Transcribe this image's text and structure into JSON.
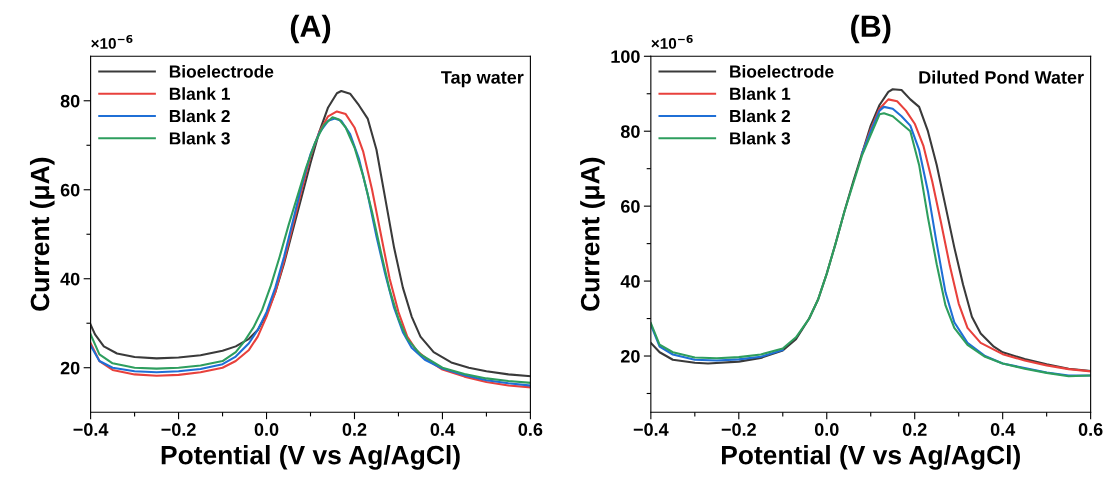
{
  "chart_data": [
    {
      "type": "line",
      "title": "(A)",
      "xlabel": "Potential (V vs Ag/AgCl)",
      "ylabel": "Current (μA)",
      "annotations": [
        "×10$^{−6}$",
        "Tap water"
      ],
      "xlim": [
        -0.4,
        0.6
      ],
      "ylim": [
        10,
        90
      ],
      "xticks": [
        {
          "value": -0.4,
          "label": "−0.4"
        },
        {
          "value": -0.3,
          "label": null
        },
        {
          "value": -0.2,
          "label": "−0.2"
        },
        {
          "value": -0.1,
          "label": null
        },
        {
          "value": 0,
          "label": "0.0"
        },
        {
          "value": 0.1,
          "label": null
        },
        0.2,
        {
          "value": 0.3,
          "label": null
        },
        0.4,
        {
          "value": 0.5,
          "label": null
        },
        0.6
      ],
      "yticks": [
        20,
        {
          "value": 30,
          "label": null
        },
        40,
        {
          "value": 50,
          "label": null
        },
        60,
        {
          "value": 70,
          "label": null
        },
        80
      ],
      "grid": false,
      "legend": "top left",
      "line_style": "solid",
      "marker": "none",
      "series": [
        {
          "name": "Bioelectrode",
          "color": "#3a3a3a",
          "x": [
            -0.4,
            -0.39,
            -0.37,
            -0.34,
            -0.3,
            -0.25,
            -0.2,
            -0.15,
            -0.1,
            -0.07,
            -0.04,
            -0.02,
            0.0,
            0.02,
            0.04,
            0.06,
            0.08,
            0.1,
            0.12,
            0.14,
            0.16,
            0.17,
            0.19,
            0.21,
            0.23,
            0.25,
            0.27,
            0.29,
            0.31,
            0.33,
            0.35,
            0.38,
            0.42,
            0.46,
            0.5,
            0.55,
            0.6
          ],
          "values": [
            29.7,
            27.5,
            24.8,
            23.2,
            22.4,
            22.1,
            22.3,
            22.8,
            23.8,
            24.8,
            26.5,
            28.5,
            32,
            37,
            43.5,
            51,
            58.5,
            66,
            73,
            78.5,
            81.7,
            82.2,
            81.6,
            79,
            76,
            69,
            58,
            47,
            38,
            31.5,
            27,
            23.5,
            21.2,
            20,
            19.2,
            18.5,
            18.1
          ]
        },
        {
          "name": "Blank 1",
          "color": "#e8413c",
          "x": [
            -0.4,
            -0.38,
            -0.35,
            -0.3,
            -0.25,
            -0.2,
            -0.15,
            -0.1,
            -0.07,
            -0.04,
            -0.02,
            0.0,
            0.02,
            0.04,
            0.06,
            0.08,
            0.1,
            0.12,
            0.14,
            0.16,
            0.18,
            0.2,
            0.22,
            0.24,
            0.26,
            0.28,
            0.3,
            0.32,
            0.34,
            0.37,
            0.4,
            0.45,
            0.5,
            0.55,
            0.6
          ],
          "values": [
            25.5,
            21.5,
            19.5,
            18.5,
            18.2,
            18.4,
            19,
            20,
            21.5,
            24,
            27,
            31.5,
            37,
            44,
            52,
            60,
            67.5,
            73,
            76.5,
            77.6,
            77,
            74,
            68.5,
            60,
            50,
            40,
            32.5,
            27,
            24,
            21.5,
            19.6,
            18,
            16.8,
            16,
            15.6
          ]
        },
        {
          "name": "Blank 2",
          "color": "#1f6fd6",
          "x": [
            -0.4,
            -0.38,
            -0.35,
            -0.3,
            -0.25,
            -0.2,
            -0.15,
            -0.1,
            -0.07,
            -0.04,
            -0.02,
            0.0,
            0.02,
            0.04,
            0.06,
            0.08,
            0.1,
            0.12,
            0.14,
            0.155,
            0.17,
            0.19,
            0.21,
            0.23,
            0.25,
            0.27,
            0.29,
            0.31,
            0.33,
            0.36,
            0.4,
            0.45,
            0.5,
            0.55,
            0.6
          ],
          "values": [
            25,
            21.5,
            20,
            19.2,
            19,
            19.2,
            19.7,
            20.8,
            22.5,
            25.5,
            28.5,
            32.5,
            38,
            45,
            53,
            61,
            68,
            72.8,
            75.5,
            76,
            75.5,
            72.5,
            67,
            59,
            49.5,
            41,
            33.5,
            28,
            24.5,
            21.8,
            19.8,
            18.3,
            17.2,
            16.5,
            16
          ]
        },
        {
          "name": "Blank 3",
          "color": "#2e9e5e",
          "x": [
            -0.4,
            -0.38,
            -0.35,
            -0.3,
            -0.25,
            -0.2,
            -0.15,
            -0.1,
            -0.07,
            -0.05,
            -0.03,
            -0.01,
            0.01,
            0.03,
            0.05,
            0.07,
            0.09,
            0.11,
            0.13,
            0.15,
            0.165,
            0.18,
            0.2,
            0.22,
            0.24,
            0.26,
            0.28,
            0.3,
            0.32,
            0.35,
            0.4,
            0.45,
            0.5,
            0.55,
            0.6
          ],
          "values": [
            27.5,
            23,
            21,
            20,
            19.8,
            20,
            20.5,
            21.5,
            23.5,
            26,
            29,
            33,
            38.5,
            45,
            52,
            58.5,
            65,
            70.5,
            74.5,
            76.3,
            75.8,
            74,
            69.5,
            63,
            55,
            46,
            37.5,
            31,
            26.5,
            23,
            20,
            18.6,
            17.6,
            17,
            16.6
          ]
        }
      ]
    },
    {
      "type": "line",
      "title": "(B)",
      "xlabel": "Potential (V vs Ag/AgCl)",
      "ylabel": "Current (μA)",
      "annotations": [
        "×10$^{−6}$",
        "Diluted Pond Water"
      ],
      "xlim": [
        -0.4,
        0.6
      ],
      "ylim": [
        5,
        100
      ],
      "xticks": [
        {
          "value": -0.4,
          "label": "−0.4"
        },
        {
          "value": -0.3,
          "label": null
        },
        {
          "value": -0.2,
          "label": "−0.2"
        },
        {
          "value": -0.1,
          "label": null
        },
        {
          "value": 0,
          "label": "0.0"
        },
        {
          "value": 0.1,
          "label": null
        },
        0.2,
        {
          "value": 0.3,
          "label": null
        },
        0.4,
        {
          "value": 0.5,
          "label": null
        },
        0.6
      ],
      "yticks": [
        {
          "value": 10,
          "label": null
        },
        20,
        {
          "value": 30,
          "label": null
        },
        40,
        {
          "value": 50,
          "label": null
        },
        60,
        {
          "value": 70,
          "label": null
        },
        80,
        {
          "value": 90,
          "label": null
        },
        100
      ],
      "grid": false,
      "legend": "top left",
      "line_style": "solid",
      "marker": "none",
      "series": [
        {
          "name": "Bioelectrode",
          "color": "#3a3a3a",
          "x": [
            -0.4,
            -0.38,
            -0.35,
            -0.3,
            -0.27,
            -0.2,
            -0.15,
            -0.1,
            -0.07,
            -0.04,
            -0.02,
            0.0,
            0.02,
            0.04,
            0.06,
            0.08,
            0.1,
            0.12,
            0.14,
            0.15,
            0.17,
            0.19,
            0.21,
            0.23,
            0.25,
            0.27,
            0.29,
            0.31,
            0.33,
            0.35,
            0.38,
            0.4,
            0.45,
            0.5,
            0.55,
            0.6
          ],
          "values": [
            23.5,
            21,
            19,
            18.2,
            18,
            18.5,
            19.5,
            21.5,
            24.5,
            30,
            35,
            42,
            50,
            58.5,
            66.5,
            74,
            81.5,
            87,
            90.5,
            91.2,
            91,
            88.5,
            86.5,
            80,
            71,
            60,
            49,
            39,
            30.5,
            26,
            22.5,
            21,
            19.2,
            17.8,
            16.6,
            16
          ]
        },
        {
          "name": "Blank 1",
          "color": "#e8413c",
          "x": [
            0.08,
            0.1,
            0.12,
            0.14,
            0.16,
            0.18,
            0.2,
            0.22,
            0.24,
            0.26,
            0.28,
            0.3,
            0.32,
            0.35,
            0.4,
            0.45,
            0.5,
            0.55,
            0.6
          ],
          "values": [
            74,
            80.5,
            86,
            88.5,
            88,
            85.5,
            82,
            76,
            66.5,
            55.5,
            44,
            34,
            27.5,
            23.5,
            20.5,
            18.8,
            17.5,
            16.5,
            15.9
          ]
        },
        {
          "name": "Blank 2",
          "color": "#1f6fd6",
          "x": [
            -0.4,
            -0.38,
            -0.35,
            -0.3,
            -0.25,
            -0.2,
            -0.15,
            -0.1,
            -0.07,
            -0.04,
            -0.02,
            0.0,
            0.02,
            0.04,
            0.06,
            0.08,
            0.1,
            0.12,
            0.13,
            0.15,
            0.17,
            0.19,
            0.21,
            0.23,
            0.25,
            0.27,
            0.29,
            0.32,
            0.36,
            0.4,
            0.45,
            0.5,
            0.55,
            0.6
          ],
          "values": [
            28.3,
            22.5,
            20.4,
            19,
            18.8,
            19.1,
            19.8,
            21.6,
            null,
            null,
            null,
            null,
            null,
            null,
            null,
            74,
            80,
            85.5,
            86.5,
            86,
            84,
            81.5,
            75,
            64,
            50,
            37,
            29,
            23.5,
            20,
            18,
            16.8,
            15.6,
            14.8,
            14.8
          ]
        },
        {
          "name": "Blank 3",
          "color": "#2e9e5e",
          "x": [
            -0.4,
            -0.38,
            -0.35,
            -0.3,
            -0.25,
            -0.2,
            -0.15,
            -0.1,
            -0.07,
            -0.04,
            -0.02,
            0.0,
            0.02,
            0.04,
            0.06,
            0.08,
            0.1,
            0.12,
            0.13,
            0.15,
            0.17,
            0.19,
            0.21,
            0.23,
            0.25,
            0.27,
            0.29,
            0.32,
            0.36,
            0.4,
            0.45,
            0.5,
            0.55,
            0.6
          ],
          "values": [
            28.8,
            23,
            21,
            19.6,
            19.4,
            19.7,
            20.4,
            22,
            25,
            30,
            35,
            42,
            50,
            58.5,
            66,
            73.5,
            79,
            84.5,
            84.8,
            84,
            82,
            80,
            71,
            57,
            44.5,
            33.5,
            27.5,
            23,
            19.8,
            18,
            16.6,
            15.5,
            14.6,
            14.8
          ]
        }
      ]
    }
  ]
}
